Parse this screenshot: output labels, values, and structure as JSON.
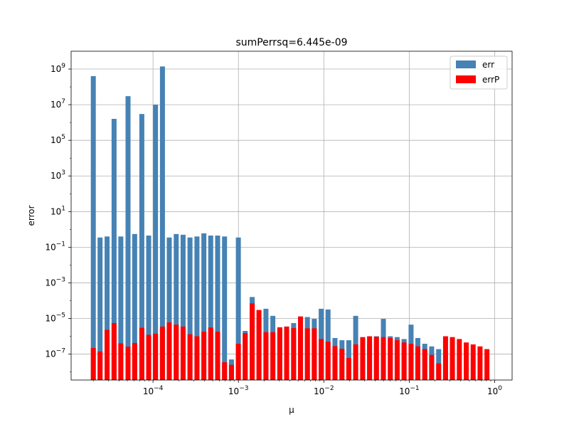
{
  "chart_data": {
    "type": "bar",
    "title": "sumPerrsq=6.445e-09",
    "xlabel": "μ",
    "ylabel": "error",
    "xscale": "log",
    "yscale": "log",
    "xlim": [
      1.1e-05,
      1.6
    ],
    "ylim": [
      3.5e-09,
      10000000000.0
    ],
    "grid": true,
    "legend_position": "top-right",
    "x_ticks": [
      {
        "value": 0.0001,
        "base": "10",
        "exp": "−4"
      },
      {
        "value": 0.001,
        "base": "10",
        "exp": "−3"
      },
      {
        "value": 0.01,
        "base": "10",
        "exp": "−2"
      },
      {
        "value": 0.1,
        "base": "10",
        "exp": "−1"
      },
      {
        "value": 1,
        "base": "10",
        "exp": "0"
      }
    ],
    "y_ticks": [
      {
        "value": 1e-07,
        "base": "10",
        "exp": "−7"
      },
      {
        "value": 1e-05,
        "base": "10",
        "exp": "−5"
      },
      {
        "value": 0.001,
        "base": "10",
        "exp": "−3"
      },
      {
        "value": 0.1,
        "base": "10",
        "exp": "−1"
      },
      {
        "value": 10,
        "base": "10",
        "exp": "1"
      },
      {
        "value": 1000,
        "base": "10",
        "exp": "3"
      },
      {
        "value": 100000,
        "base": "10",
        "exp": "5"
      },
      {
        "value": 10000000,
        "base": "10",
        "exp": "7"
      },
      {
        "value": 1000000000,
        "base": "10",
        "exp": "9"
      }
    ],
    "x": [
      2e-05,
      2.4e-05,
      2.9e-05,
      3.5e-05,
      4.2e-05,
      5.1e-05,
      6.1e-05,
      7.4e-05,
      8.9e-05,
      0.000107,
      0.000129,
      0.000155,
      0.000187,
      0.000225,
      0.000271,
      0.000327,
      0.000394,
      0.000474,
      0.000571,
      0.000688,
      0.000829,
      0.000998,
      0.0012,
      0.00145,
      0.00174,
      0.0021,
      0.00253,
      0.00305,
      0.00367,
      0.00443,
      0.00533,
      0.00642,
      0.00773,
      0.00931,
      0.0112,
      0.0135,
      0.0163,
      0.0196,
      0.0236,
      0.0285,
      0.0343,
      0.0413,
      0.0498,
      0.06,
      0.0722,
      0.087,
      0.105,
      0.126,
      0.152,
      0.183,
      0.221,
      0.266,
      0.32,
      0.386,
      0.465,
      0.56,
      0.674,
      0.812
    ],
    "series": [
      {
        "name": "err",
        "color": "#4682b4",
        "values": [
          400000000.0,
          0.35,
          0.4,
          1600000.0,
          0.4,
          30000000.0,
          0.55,
          3000000.0,
          0.45,
          10000000.0,
          1400000000.0,
          0.35,
          0.55,
          0.5,
          0.35,
          0.4,
          0.6,
          0.45,
          0.45,
          0.4,
          5e-08,
          0.35,
          2e-06,
          0.00016,
          1e-05,
          3.5e-05,
          1.4e-05,
          1.8e-06,
          3.5e-06,
          5.5e-06,
          3.1e-06,
          1.2e-05,
          9.5e-06,
          3.5e-05,
          3.2e-05,
          8e-07,
          6e-07,
          6e-07,
          1.4e-05,
          6e-08,
          3.5e-07,
          1e-06,
          9.5e-06,
          1e-06,
          9e-07,
          7e-07,
          4.5e-06,
          8e-07,
          3.8e-07,
          2.7e-07,
          1.9e-07,
          9e-08,
          3e-08,
          5e-09,
          5e-09,
          5e-09,
          5e-09,
          5e-09
        ]
      },
      {
        "name": "errP",
        "color": "#ff0000",
        "values": [
          2.2e-07,
          1.4e-07,
          2.3e-06,
          5.5e-06,
          4e-07,
          2.6e-07,
          4.2e-07,
          3e-06,
          1.2e-06,
          1.4e-06,
          3.5e-06,
          6e-06,
          4.5e-06,
          3.5e-06,
          1.3e-06,
          1e-06,
          1.8e-06,
          3.1e-06,
          1.8e-06,
          3.5e-08,
          2.5e-08,
          3.8e-07,
          1.5e-06,
          7e-05,
          3e-05,
          1.7e-06,
          1.7e-06,
          3.2e-06,
          3.5e-06,
          2.9e-06,
          1.3e-05,
          2.8e-06,
          2.8e-06,
          7e-07,
          5e-07,
          2.8e-07,
          2e-07,
          6e-08,
          3.5e-07,
          9e-07,
          1e-06,
          9.5e-07,
          9e-07,
          8e-07,
          6e-07,
          4.5e-07,
          3.8e-07,
          2.7e-07,
          1.9e-07,
          9e-08,
          3e-08,
          1e-06,
          9e-07,
          7e-07,
          4.5e-07,
          3.5e-07,
          2.7e-07,
          1.9e-07
        ]
      }
    ]
  }
}
